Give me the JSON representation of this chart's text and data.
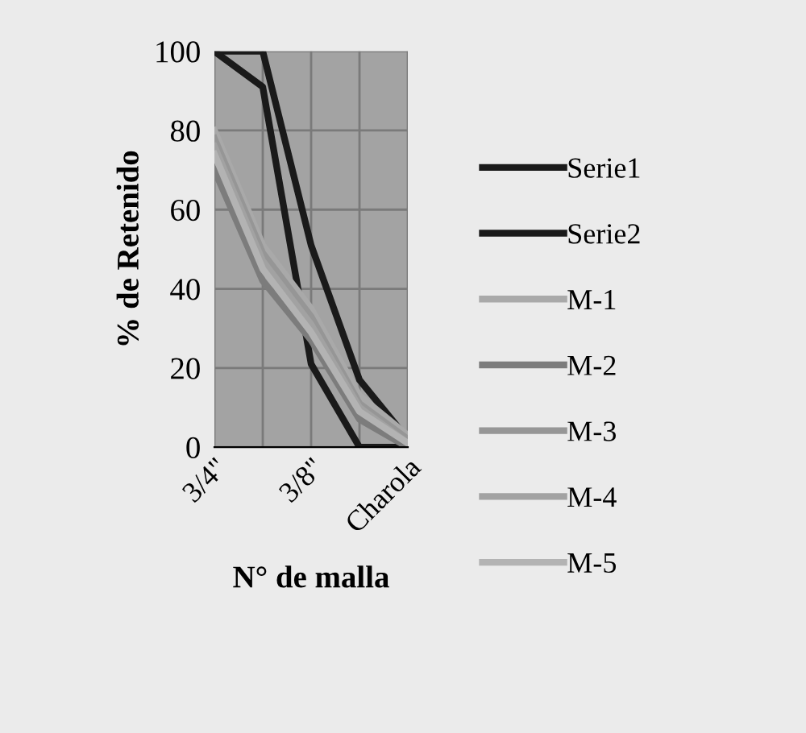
{
  "chart_data": {
    "type": "line",
    "xlabel": "N° de malla",
    "ylabel": "% de Retenido",
    "categories": [
      "3/4\"",
      null,
      "3/8\"",
      null,
      "Charola"
    ],
    "series": [
      {
        "name": "Serie1",
        "color": "#1a1a1a",
        "values": [
          100,
          100,
          51,
          17,
          2
        ]
      },
      {
        "name": "Serie2",
        "color": "#1a1a1a",
        "values": [
          100,
          91,
          21,
          0,
          0
        ]
      },
      {
        "name": "M-1",
        "color": "#a9a9a9",
        "values": [
          80,
          51,
          35,
          13,
          3
        ]
      },
      {
        "name": "M-2",
        "color": "#7c7c7c",
        "values": [
          70,
          42,
          27,
          7,
          0
        ]
      },
      {
        "name": "M-3",
        "color": "#969696",
        "values": [
          78,
          49,
          33,
          11,
          2
        ]
      },
      {
        "name": "M-4",
        "color": "#a2a2a2",
        "values": [
          76,
          47,
          31,
          10,
          1
        ]
      },
      {
        "name": "M-5",
        "color": "#b3b3b3",
        "values": [
          74,
          45,
          29,
          9,
          1
        ]
      }
    ],
    "ylim": [
      0,
      100
    ],
    "yticks": [
      0,
      20,
      40,
      60,
      80,
      100
    ],
    "grid": true,
    "legend": "right",
    "marker": "none",
    "line_style": "solid"
  }
}
